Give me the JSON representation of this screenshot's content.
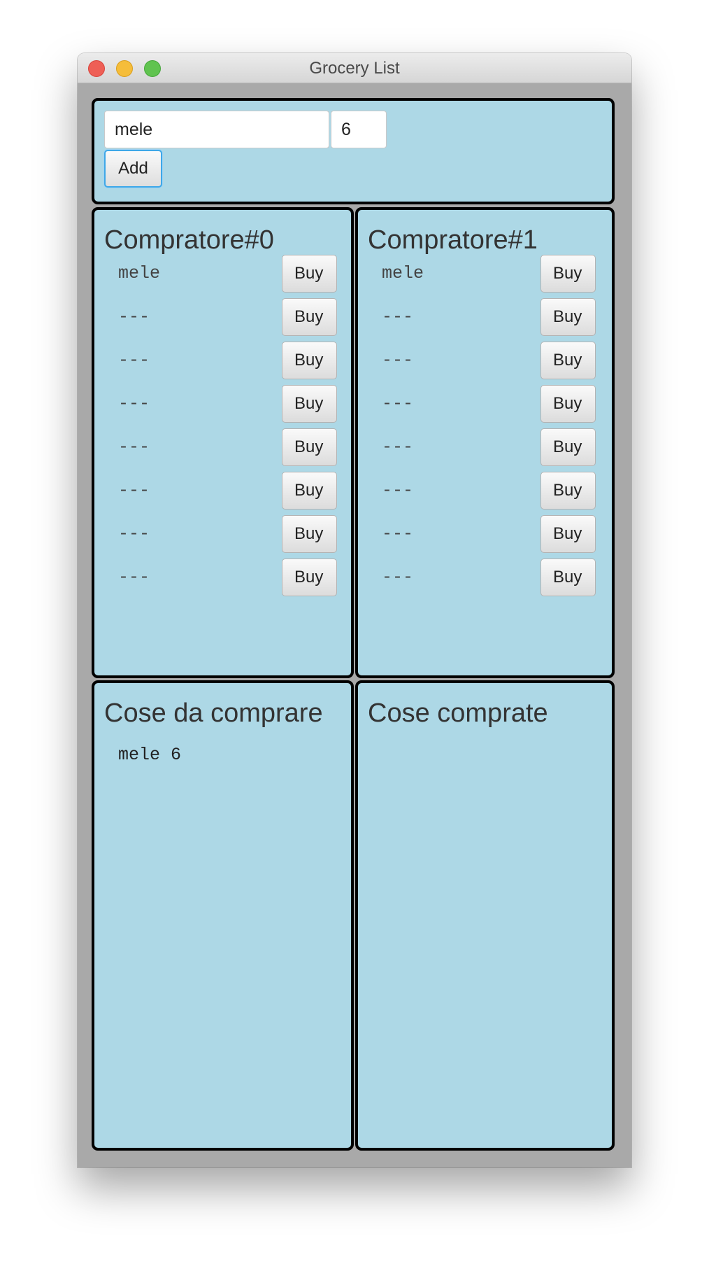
{
  "window": {
    "title": "Grocery List"
  },
  "input": {
    "item_value": "mele",
    "qty_value": "6",
    "add_label": "Add"
  },
  "buyers": [
    {
      "title": "Compratore#0",
      "items": [
        "mele",
        "---",
        "---",
        "---",
        "---",
        "---",
        "---",
        "---"
      ],
      "buy_label": "Buy"
    },
    {
      "title": "Compratore#1",
      "items": [
        "mele",
        "---",
        "---",
        "---",
        "---",
        "---",
        "---",
        "---"
      ],
      "buy_label": "Buy"
    }
  ],
  "todo": {
    "title": "Cose da comprare",
    "items": [
      "mele 6"
    ]
  },
  "done": {
    "title": "Cose comprate",
    "items": []
  }
}
